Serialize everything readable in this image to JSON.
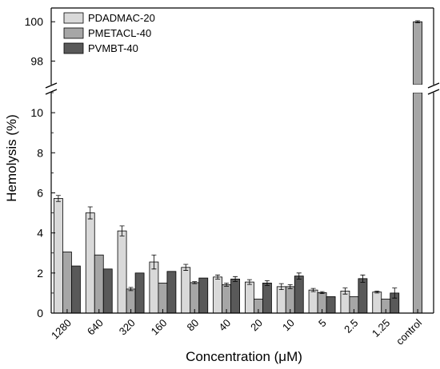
{
  "chart_data": {
    "type": "bar",
    "title": "",
    "xlabel": "Concentration (μM)",
    "ylabel": "Hemolysis (%)",
    "categories": [
      "1280",
      "640",
      "320",
      "160",
      "80",
      "40",
      "20",
      "10",
      "5",
      "2.5",
      "1.25",
      "control"
    ],
    "y_axis_break": {
      "lower_range": [
        0,
        11
      ],
      "upper_range": [
        96.8,
        100.7
      ]
    },
    "yticks_lower": [
      "0",
      "2",
      "4",
      "6",
      "8",
      "10"
    ],
    "yticks_upper": [
      "98",
      "100"
    ],
    "legend_position": "top-left",
    "series": [
      {
        "name": "PDADMAC-20",
        "color": "#d9d9d9",
        "values": [
          5.72,
          5.0,
          4.1,
          2.55,
          2.28,
          1.8,
          1.55,
          1.32,
          1.15,
          1.1,
          1.05,
          null
        ],
        "errors": [
          0.15,
          0.3,
          0.25,
          0.35,
          0.15,
          0.1,
          0.12,
          0.15,
          0.08,
          0.15,
          0.05,
          null
        ]
      },
      {
        "name": "PMETACL-40",
        "color": "#a6a6a6",
        "values": [
          3.05,
          2.9,
          1.2,
          1.5,
          1.52,
          1.42,
          0.7,
          1.32,
          1.02,
          0.82,
          0.7,
          100.0
        ],
        "errors": [
          0.0,
          0.0,
          0.08,
          0.0,
          0.05,
          0.08,
          0.0,
          0.1,
          0.05,
          0.0,
          0.0,
          0.05
        ]
      },
      {
        "name": "PVMBT-40",
        "color": "#595959",
        "values": [
          2.35,
          2.2,
          2.0,
          2.08,
          1.75,
          1.7,
          1.5,
          1.85,
          0.82,
          1.72,
          1.0,
          null
        ],
        "errors": [
          0.0,
          0.0,
          0.0,
          0.0,
          0.0,
          0.12,
          0.12,
          0.15,
          0.0,
          0.18,
          0.25,
          null
        ]
      }
    ]
  }
}
